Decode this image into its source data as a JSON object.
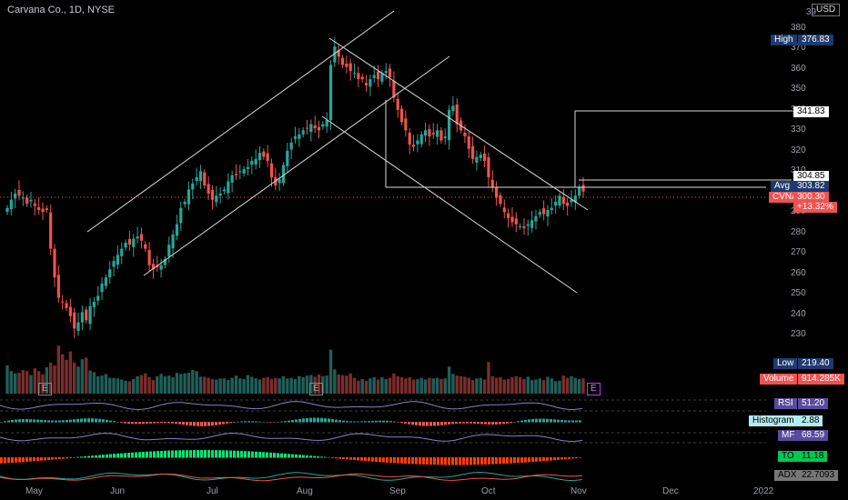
{
  "header": {
    "title": "Carvana Co., 1D, NYSE",
    "currency": "USD"
  },
  "chart_data": {
    "type": "candlestick",
    "y_ticks": [
      230,
      240,
      250,
      260,
      270,
      280,
      290,
      300,
      310,
      320,
      330,
      340,
      350,
      360,
      370,
      380
    ],
    "y_top_partial": "39",
    "ylim": [
      222,
      392
    ],
    "x_ticks": [
      "May",
      "Jun",
      "Jul",
      "Aug",
      "Sep",
      "Oct",
      "Nov",
      "Dec",
      "2022"
    ],
    "closes": [
      292,
      296,
      299,
      298,
      297,
      294,
      296,
      293,
      291,
      290,
      291,
      272,
      258,
      248,
      246,
      243,
      239,
      233,
      236,
      241,
      237,
      244,
      246,
      249,
      255,
      258,
      262,
      266,
      269,
      272,
      275,
      274,
      277,
      278,
      276,
      272,
      264,
      262,
      263,
      264,
      267,
      274,
      279,
      284,
      292,
      295,
      301,
      304,
      307,
      310,
      303,
      299,
      296,
      298,
      299,
      301,
      305,
      308,
      308,
      310,
      311,
      312,
      315,
      316,
      319,
      317,
      315,
      307,
      303,
      306,
      313,
      320,
      324,
      327,
      328,
      330,
      331,
      333,
      331,
      330,
      333,
      335,
      362,
      371,
      366,
      362,
      361,
      359,
      358,
      355,
      355,
      352,
      355,
      357,
      355,
      358,
      359,
      356,
      346,
      340,
      334,
      330,
      323,
      322,
      325,
      328,
      330,
      327,
      328,
      330,
      325,
      327,
      340,
      342,
      333,
      330,
      327,
      321,
      316,
      317,
      318,
      315,
      307,
      302,
      297,
      294,
      290,
      287,
      285,
      284,
      283,
      282,
      284,
      286,
      288,
      290,
      289,
      291,
      292,
      295,
      298,
      294,
      293,
      296,
      298,
      302,
      300
    ],
    "volumes": [
      50,
      40,
      36,
      37,
      42,
      40,
      33,
      45,
      40,
      34,
      47,
      55,
      50,
      85,
      70,
      60,
      75,
      55,
      48,
      61,
      64,
      41,
      38,
      31,
      32,
      35,
      28,
      28,
      27,
      25,
      23,
      22,
      26,
      31,
      33,
      36,
      29,
      24,
      31,
      35,
      31,
      32,
      29,
      37,
      35,
      36,
      37,
      42,
      40,
      30,
      30,
      28,
      26,
      25,
      27,
      27,
      24,
      28,
      32,
      27,
      26,
      33,
      30,
      27,
      25,
      28,
      29,
      26,
      28,
      27,
      31,
      27,
      28,
      26,
      31,
      29,
      32,
      33,
      30,
      34,
      31,
      32,
      78,
      43,
      34,
      33,
      32,
      36,
      28,
      23,
      26,
      23,
      27,
      29,
      25,
      29,
      26,
      28,
      36,
      31,
      29,
      27,
      29,
      25,
      26,
      28,
      25,
      28,
      27,
      28,
      26,
      27,
      48,
      35,
      32,
      31,
      30,
      28,
      24,
      27,
      28,
      25,
      56,
      31,
      28,
      29,
      25,
      26,
      29,
      31,
      29,
      26,
      30,
      24,
      25,
      27,
      24,
      30,
      27,
      22,
      23,
      32,
      28,
      31,
      28,
      26,
      27
    ],
    "earnings_markers": [
      "E",
      "E",
      "E"
    ],
    "price_labels": {
      "high": {
        "label": "High",
        "value": "376.83"
      },
      "target": {
        "value": "341.83"
      },
      "level": {
        "value": "304.85"
      },
      "avg": {
        "label": "Avg",
        "value": "303.82"
      },
      "last": {
        "label": "CVNA",
        "value": "300.30",
        "change": "+13.32%"
      },
      "low": {
        "label": "Low",
        "value": "219.40"
      }
    },
    "indicators": [
      {
        "name": "Volume",
        "value": "914.285K"
      },
      {
        "name": "RSI",
        "value": "51.20"
      },
      {
        "name": "Histogram",
        "value": "2.88"
      },
      {
        "name": "MF",
        "value": "68.59"
      },
      {
        "name": "TO",
        "value": "11.18"
      },
      {
        "name": "ADX",
        "value": "22.7093"
      }
    ],
    "colors": {
      "up": "#26a69a",
      "down": "#ef5350",
      "line": "#d8d8d8",
      "avg": "#1e3a6e",
      "last": "#ef5350",
      "grid": "#333333"
    }
  }
}
